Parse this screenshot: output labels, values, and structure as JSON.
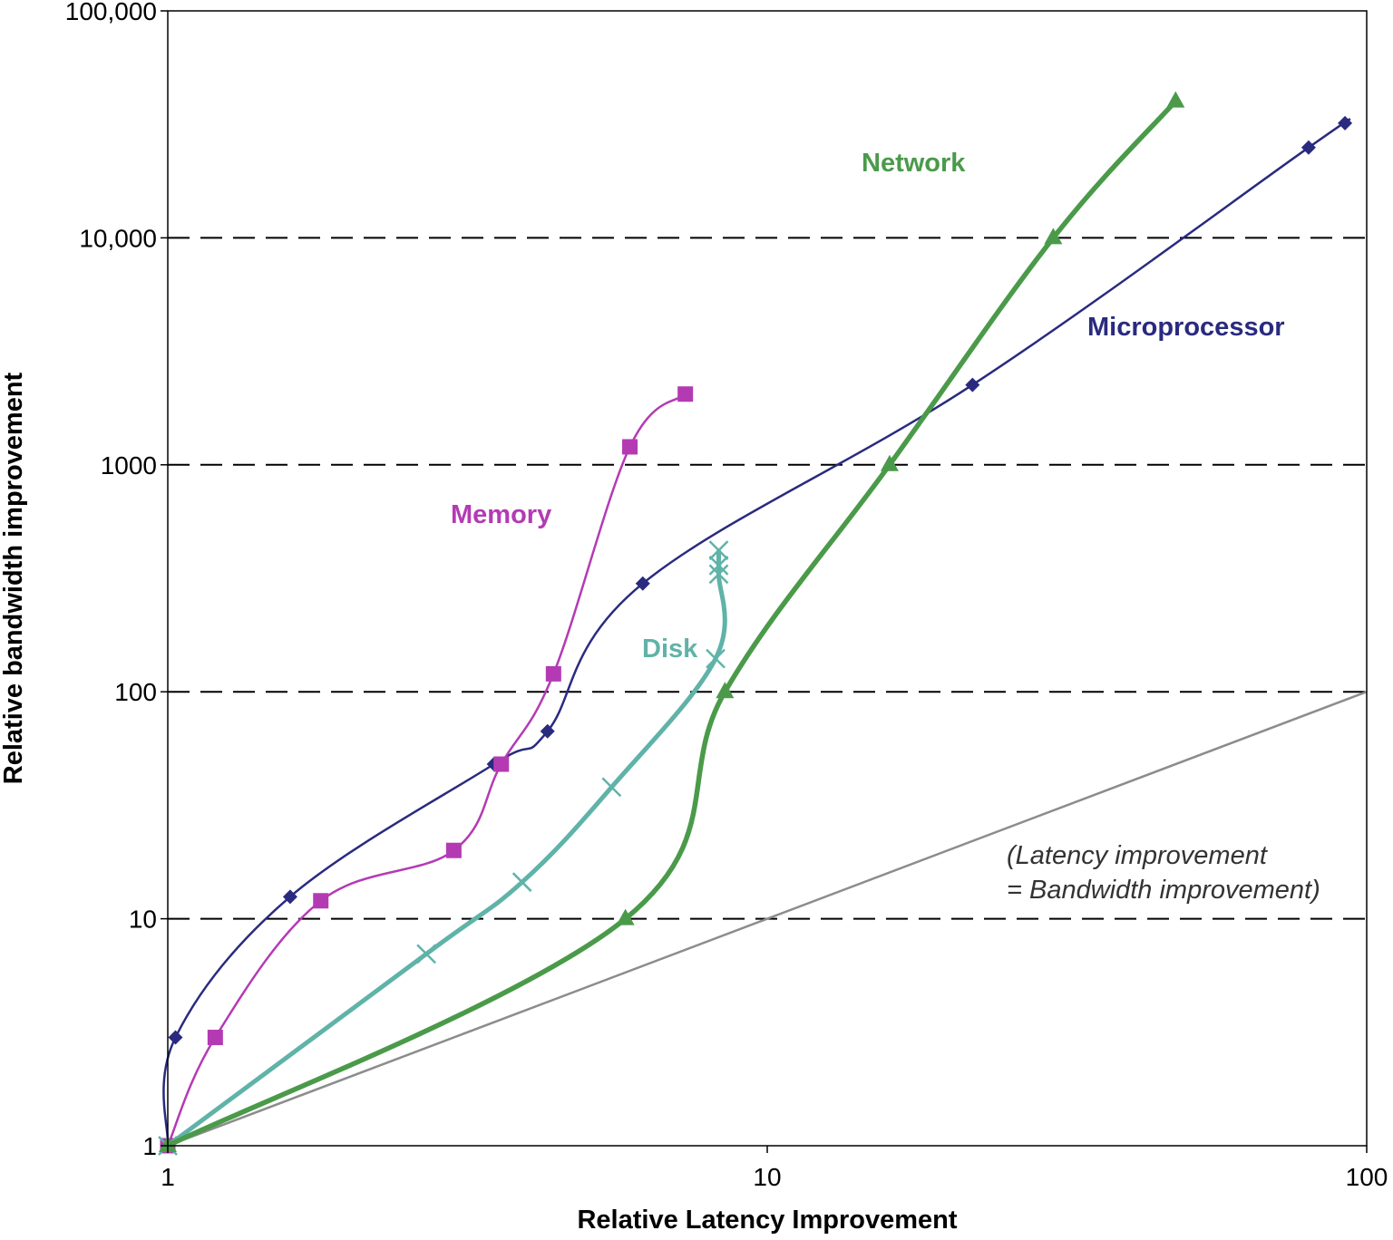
{
  "chart_data": {
    "type": "line",
    "xlabel": "Relative Latency Improvement",
    "ylabel": "Relative bandwidth improvement",
    "x_scale": "log",
    "y_scale": "log",
    "xlim": [
      1,
      100
    ],
    "ylim": [
      1,
      100000
    ],
    "x_ticks": [
      "1",
      "10",
      "100"
    ],
    "y_ticks": [
      "1",
      "10",
      "100",
      "1000",
      "10,000",
      "100,000"
    ],
    "grid": "dashed horizontal lines at 10, 100, 1000, 10,000",
    "annotation": [
      "(Latency improvement",
      "= Bandwidth improvement)"
    ],
    "reference_line": {
      "x": [
        1,
        100
      ],
      "y": [
        1,
        100
      ]
    },
    "series": [
      {
        "name": "Microprocessor",
        "color": "#2a2a7f",
        "marker": "diamond",
        "points": [
          [
            1,
            1
          ],
          [
            1.03,
            3
          ],
          [
            1.6,
            12.5
          ],
          [
            3.5,
            48
          ],
          [
            4.3,
            67
          ],
          [
            6.2,
            300
          ],
          [
            22,
            2250
          ],
          [
            80,
            25000
          ],
          [
            92,
            32000
          ]
        ]
      },
      {
        "name": "Memory",
        "color": "#b43ab4",
        "marker": "square",
        "points": [
          [
            1,
            1
          ],
          [
            1.2,
            3
          ],
          [
            1.8,
            12
          ],
          [
            3.0,
            20
          ],
          [
            3.6,
            48
          ],
          [
            4.4,
            120
          ],
          [
            5.9,
            1200
          ],
          [
            7.3,
            2050
          ]
        ]
      },
      {
        "name": "Disk",
        "color": "#5fb3a8",
        "marker": "cross",
        "points": [
          [
            1,
            1
          ],
          [
            2.7,
            7
          ],
          [
            3.9,
            14.5
          ],
          [
            5.5,
            38
          ],
          [
            8.2,
            140
          ],
          [
            8.3,
            330
          ],
          [
            8.3,
            360
          ],
          [
            8.3,
            420
          ]
        ]
      },
      {
        "name": "Network",
        "color": "#4a9a4a",
        "marker": "triangle",
        "points": [
          [
            1,
            1
          ],
          [
            5.8,
            10
          ],
          [
            8.5,
            100
          ],
          [
            16,
            1000
          ],
          [
            30,
            10000
          ],
          [
            48,
            40000
          ]
        ]
      }
    ]
  }
}
